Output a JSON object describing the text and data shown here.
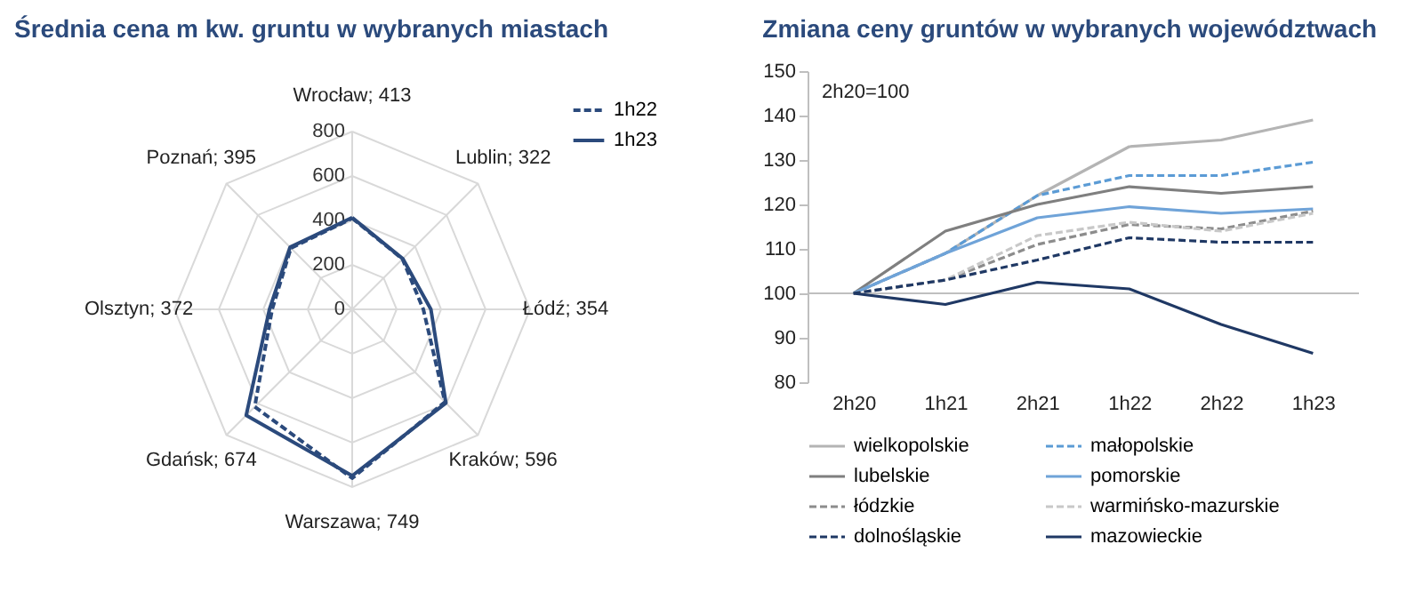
{
  "chart_data": [
    {
      "type": "radar",
      "title": "Średnia cena m kw. gruntu w wybranych miastach",
      "categories": [
        "Wrocław; 413",
        "Lublin; 322",
        "Łódź; 354",
        "Kraków; 596",
        "Warszawa; 749",
        "Gdańsk; 674",
        "Olsztyn; 372",
        "Poznań; 395"
      ],
      "series": [
        {
          "name": "1h22",
          "color": "#2b4a7c",
          "line_style": "dashed",
          "values": [
            410,
            320,
            320,
            590,
            760,
            620,
            360,
            390
          ]
        },
        {
          "name": "1h23",
          "color": "#2b4a7c",
          "line_style": "solid",
          "values": [
            413,
            322,
            354,
            596,
            749,
            674,
            372,
            395
          ]
        }
      ],
      "ylim": [
        0,
        800
      ],
      "yticks": [
        0,
        200,
        400,
        600,
        800
      ],
      "grid": true,
      "legend": "top right"
    },
    {
      "type": "line",
      "title": "Zmiana ceny gruntów w wybranych województwach",
      "categories": [
        "2h20",
        "1h21",
        "2h21",
        "1h22",
        "2h22",
        "1h23"
      ],
      "series": [
        {
          "name": "wielkopolskie",
          "color": "#b4b4b4",
          "line_style": "solid",
          "values": [
            100,
            109,
            122,
            133,
            134.5,
            139
          ]
        },
        {
          "name": "małopolskie",
          "color": "#5b9bd5",
          "line_style": "dashed",
          "values": [
            100,
            109,
            122,
            126.5,
            126.5,
            129.5
          ]
        },
        {
          "name": "lubelskie",
          "color": "#7f7f7f",
          "line_style": "solid",
          "values": [
            100,
            114,
            120,
            124,
            122.5,
            124
          ]
        },
        {
          "name": "pomorskie",
          "color": "#6fa3d8",
          "line_style": "solid",
          "values": [
            100,
            109,
            117,
            119.5,
            118,
            119
          ]
        },
        {
          "name": "łódzkie",
          "color": "#8c8c8c",
          "line_style": "dashed",
          "values": [
            100,
            103,
            111,
            115.5,
            114.5,
            118.5
          ]
        },
        {
          "name": "warmińsko-mazurskie",
          "color": "#c8c8c8",
          "line_style": "dashed",
          "values": [
            100,
            103,
            113,
            116,
            114,
            118
          ]
        },
        {
          "name": "dolnośląskie",
          "color": "#1f3864",
          "line_style": "dashed",
          "values": [
            100,
            103,
            107.5,
            112.5,
            111.5,
            111.5
          ]
        },
        {
          "name": "mazowieckie",
          "color": "#1f3864",
          "line_style": "solid",
          "values": [
            100,
            97.5,
            102.5,
            101,
            93,
            86.5
          ]
        }
      ],
      "ylim": [
        80,
        150
      ],
      "yticks": [
        80,
        90,
        100,
        110,
        120,
        130,
        140,
        150
      ],
      "ref_lines": [
        {
          "axis": "y",
          "value": 100,
          "color": "#bfbfbf"
        }
      ],
      "annotations": [
        "2h20=100"
      ],
      "legend": "bottom"
    }
  ]
}
